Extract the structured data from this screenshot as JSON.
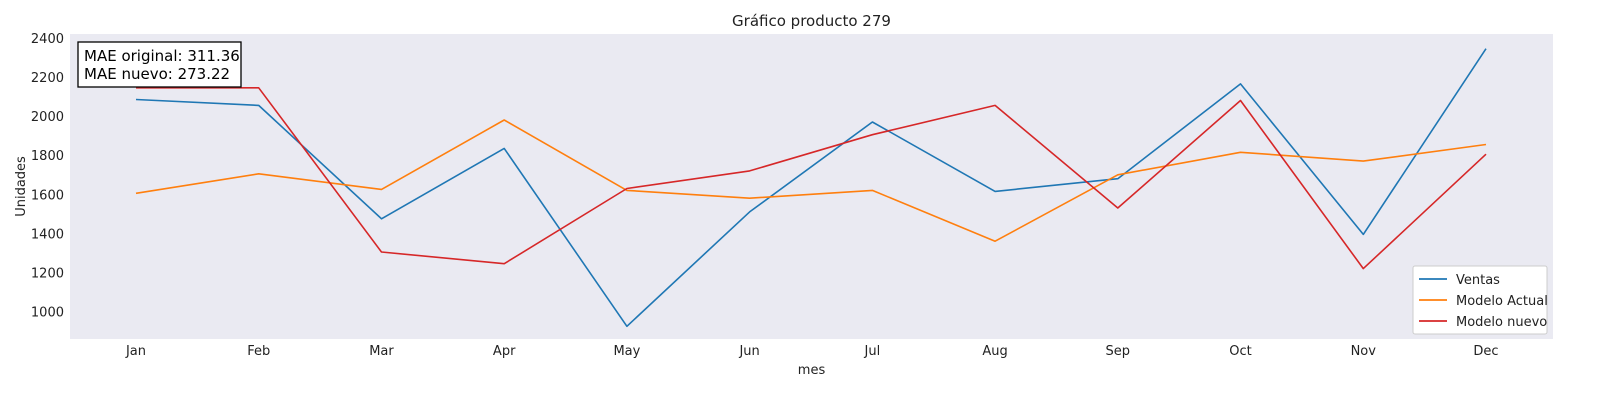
{
  "chart_data": {
    "type": "line",
    "title": "Gráfico producto 279",
    "xlabel": "mes",
    "ylabel": "Unidades",
    "categories": [
      "Jan",
      "Feb",
      "Mar",
      "Apr",
      "May",
      "Jun",
      "Jul",
      "Aug",
      "Sep",
      "Oct",
      "Nov",
      "Dec"
    ],
    "ylim": [
      860,
      2420
    ],
    "yticks": [
      1000,
      1200,
      1400,
      1600,
      1800,
      2000,
      2200,
      2400
    ],
    "grid": false,
    "legend_position": "lower-right",
    "background_color": "#eaeaf2",
    "series": [
      {
        "name": "Ventas",
        "color": "#1f77b4",
        "values": [
          2085,
          2055,
          1475,
          1835,
          925,
          1510,
          1970,
          1615,
          1680,
          2165,
          1395,
          2345
        ]
      },
      {
        "name": "Modelo Actual",
        "color": "#ff7f0e",
        "values": [
          1605,
          1705,
          1625,
          1980,
          1620,
          1580,
          1620,
          1360,
          1700,
          1815,
          1770,
          1855
        ]
      },
      {
        "name": "Modelo nuevo",
        "color": "#d62728",
        "values": [
          2145,
          2145,
          1305,
          1245,
          1630,
          1720,
          1905,
          2055,
          1530,
          2080,
          1220,
          1805
        ]
      }
    ],
    "annotation": {
      "lines": [
        "MAE original: 311.36",
        "MAE nuevo: 273.22"
      ]
    }
  }
}
